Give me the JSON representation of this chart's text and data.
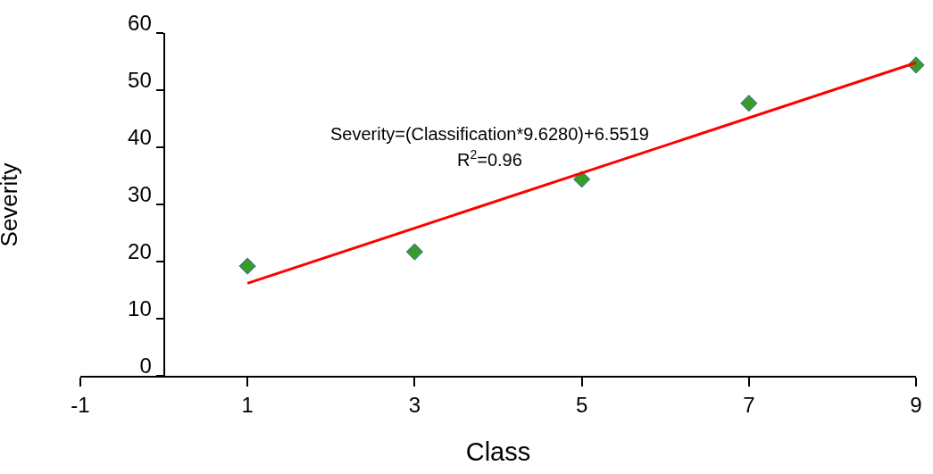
{
  "chart_data": {
    "type": "scatter",
    "xlabel": "Class",
    "ylabel": "Severity",
    "annotations": [
      "Severity=(Classification*9.6280)+6.5519",
      "R$^{2}$=0.96"
    ],
    "series": [
      {
        "color": "#3a9a2a",
        "marker": "diamond",
        "x": [
          1,
          3,
          5,
          7,
          9
        ],
        "values": [
          19.2,
          21.7,
          34.4,
          47.7,
          54.4
        ]
      },
      {
        "type": "line",
        "color": "#ff0000",
        "marker": "none",
        "line_style": "solid",
        "x": [
          1,
          9
        ],
        "values": [
          16.2,
          54.8
        ]
      }
    ],
    "xlim": [
      -1,
      9
    ],
    "xticks": [
      -1,
      1,
      3,
      5,
      7,
      9
    ],
    "ylim": [
      0,
      60
    ],
    "yticks": [
      0,
      10,
      20,
      30,
      40,
      50,
      60
    ],
    "grid": false
  }
}
